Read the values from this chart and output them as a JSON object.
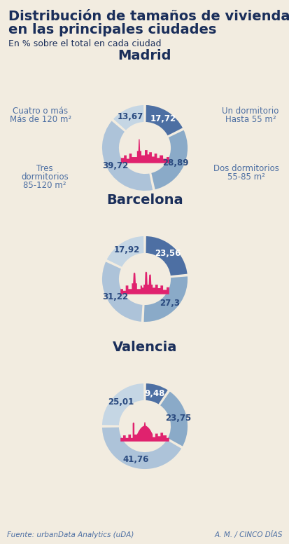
{
  "bg_color": "#f2ece0",
  "title_line1": "Distribución de tamaños de vivienda",
  "title_line2": "en las principales ciudades",
  "subtitle": "En % sobre el total en cada ciudad",
  "footer_left": "Fuente: urbanData Analytics (uDA)",
  "footer_right": "A. M. / CINCO DÍAS",
  "cities": [
    {
      "name": "Madrid",
      "values": [
        17.72,
        28.89,
        39.72,
        13.67
      ],
      "colors": [
        "#4d6fa3",
        "#8aaac8",
        "#adc3d9",
        "#c5d6e4"
      ],
      "labels": [
        "17,72",
        "28,89",
        "39,72",
        "13,67"
      ],
      "skyline_color": "#e0226e"
    },
    {
      "name": "Barcelona",
      "values": [
        23.56,
        27.3,
        31.22,
        17.92
      ],
      "colors": [
        "#4d6fa3",
        "#8aaac8",
        "#adc3d9",
        "#c5d6e4"
      ],
      "labels": [
        "23,56",
        "27,3",
        "31,22",
        "17,92"
      ],
      "skyline_color": "#e0226e"
    },
    {
      "name": "Valencia",
      "values": [
        9.48,
        23.75,
        41.76,
        25.01
      ],
      "colors": [
        "#4d6fa3",
        "#8aaac8",
        "#adc3d9",
        "#c5d6e4"
      ],
      "labels": [
        "9,48",
        "23,75",
        "41,76",
        "25,01"
      ],
      "skyline_color": "#e0226e"
    }
  ],
  "title_color": "#1a2e5a",
  "text_color": "#4d6fa3",
  "city_title_color": "#1a2e5a",
  "madrid_legend": {
    "top_left": [
      "Cuatro o más",
      "Más de 120 m²"
    ],
    "top_right": [
      "Un dormitorio",
      "Hasta 55 m²"
    ],
    "bot_left": [
      "Tres",
      "dormitorios",
      "85-120 m²"
    ],
    "bot_right": [
      "Dos dormitorios",
      "55-85 m²"
    ]
  }
}
